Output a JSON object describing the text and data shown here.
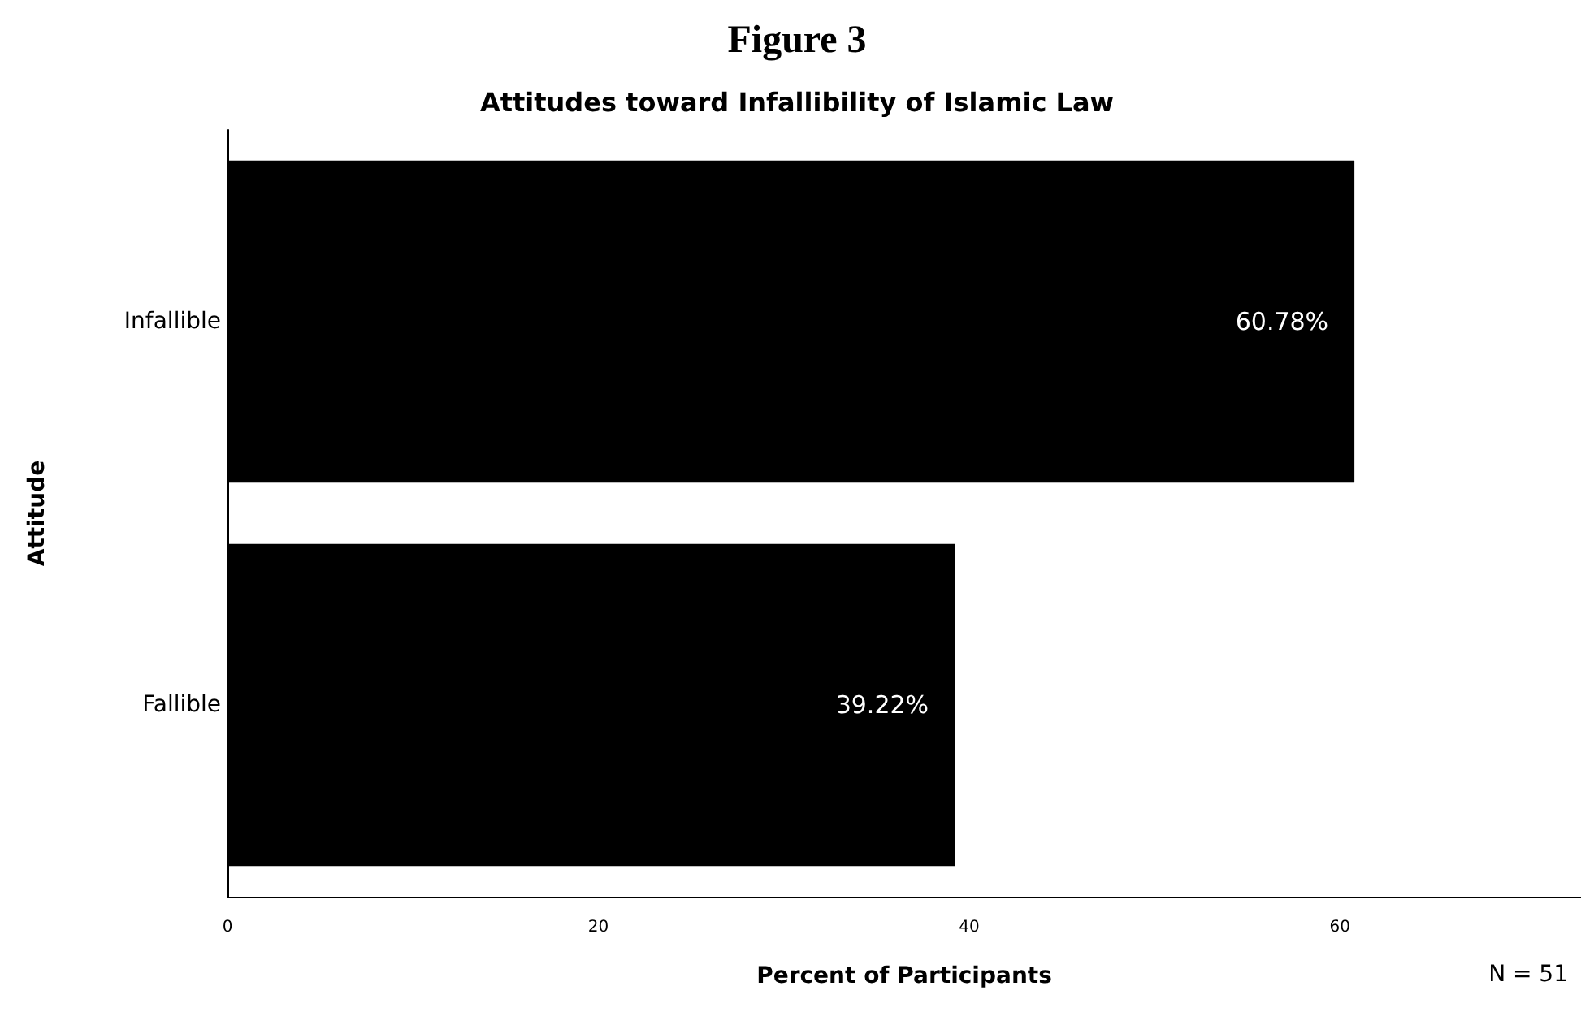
{
  "chart_data": {
    "type": "bar",
    "orientation": "horizontal",
    "title": "Figure 3",
    "subtitle": "Attitudes toward Infallibility of Islamic Law",
    "categories": [
      "Infallible",
      "Fallible"
    ],
    "values": [
      60.78,
      39.22
    ],
    "color": "#000000",
    "value_labels": [
      "60.78%",
      "39.22%"
    ],
    "xlim": [
      0,
      73
    ],
    "xticks": [
      0,
      20,
      40,
      60
    ],
    "xlabel": "Percent of Participants",
    "ylabel": "Attitude",
    "grid": false,
    "annotations": [
      "N = 51"
    ]
  }
}
